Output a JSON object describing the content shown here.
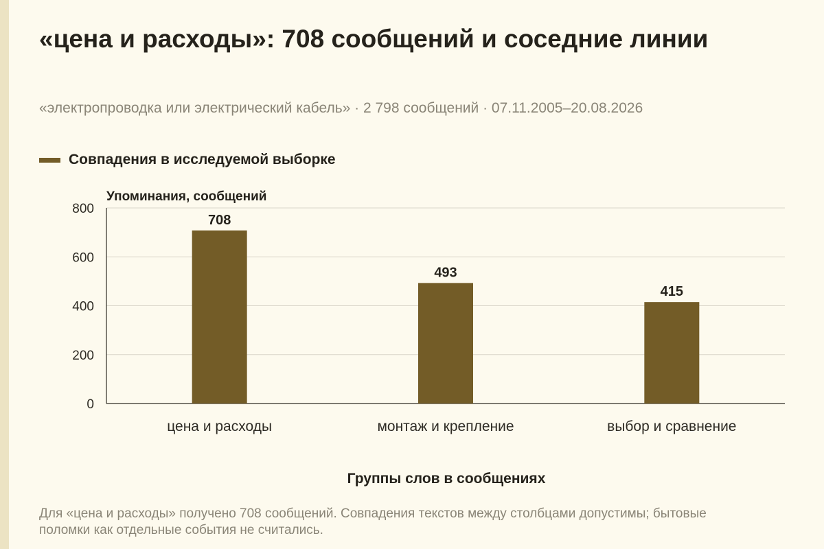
{
  "header": {
    "title": "«цена и расходы»: 708 сообщений и соседние линии",
    "subtitle": "«электропроводка или электрический кабель» · 2 798 сообщений · 07.11.2005–20.08.2026"
  },
  "legend": {
    "label": "Совпадения в исследуемой выборке",
    "color": "#735c27"
  },
  "footnote": "Для «цена и расходы» получено 708 сообщений. Совпадения текстов между столбцами допустимы; бытовые поломки как отдельные события не считались.",
  "chart_data": {
    "type": "bar",
    "title": "«цена и расходы»: 708 сообщений и соседние линии",
    "subtitle": "«электропроводка или электрический кабель» · 2 798 сообщений · 07.11.2005–20.08.2026",
    "xlabel": "Группы слов в сообщениях",
    "ylabel": "Упоминания, сообщений",
    "categories": [
      "цена и расходы",
      "монтаж и крепление",
      "выбор и сравнение"
    ],
    "series": [
      {
        "name": "Совпадения в исследуемой выборке",
        "values": [
          708,
          493,
          415
        ],
        "color": "#735c27"
      }
    ],
    "ylim": [
      0,
      800
    ],
    "yticks": [
      0,
      200,
      400,
      600,
      800
    ],
    "grid": true,
    "legend_position": "top-left"
  }
}
